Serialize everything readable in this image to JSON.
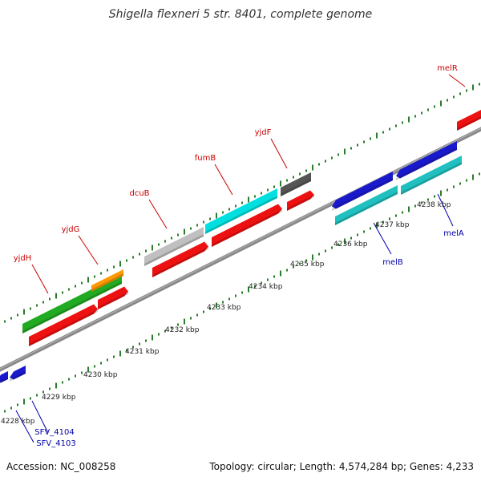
{
  "title": "Shigella flexneri 5 str. 8401, complete genome",
  "footer": {
    "accession": "Accession: NC_008258",
    "stats": "Topology: circular; Length: 4,574,284 bp; Genes: 4,233"
  },
  "colors": {
    "backbone": "#888888",
    "tick": "#2a7d2a",
    "tick_label": "#222222",
    "forward_label": "#cc0000",
    "reverse_label": "#0000aa"
  },
  "scale_labels": [
    "4228 kbp",
    "4229 kbp",
    "4230 kbp",
    "4231 kbp",
    "4232 kbp",
    "4233 kbp",
    "4234 kbp",
    "4235 kbp",
    "4236 kbp",
    "4237 kbp",
    "4238 kbp"
  ],
  "genes": [
    {
      "label": "yjdH",
      "strand": "forward",
      "color": "#22aa22"
    },
    {
      "label": "yjdG",
      "strand": "forward",
      "color": "#ff9900"
    },
    {
      "label": "dcuB",
      "strand": "forward",
      "color": "#c0c0c0"
    },
    {
      "label": "fumB",
      "strand": "forward",
      "color": "#00e0e0"
    },
    {
      "label": "yjdF",
      "strand": "forward",
      "color": "#555555"
    },
    {
      "label": "melR",
      "strand": "forward",
      "color": "#ee0000"
    },
    {
      "label": "melB",
      "strand": "reverse",
      "color": "#1a1acc"
    },
    {
      "label": "melA",
      "strand": "reverse",
      "color": "#1a1acc"
    },
    {
      "label": "SFV_4104",
      "strand": "reverse",
      "color": "#1a1acc"
    },
    {
      "label": "SFV_4103",
      "strand": "reverse",
      "color": "#1a1acc"
    }
  ]
}
